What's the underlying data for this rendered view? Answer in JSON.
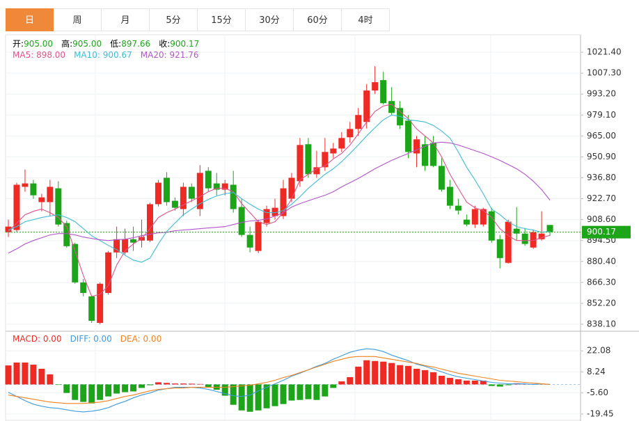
{
  "tabs": [
    "日",
    "周",
    "月",
    "5分",
    "15分",
    "30分",
    "60分",
    "4时"
  ],
  "active_tab": 0,
  "quote": [
    {
      "label": "开",
      "value": "905.00"
    },
    {
      "label": "高",
      "value": "905.00"
    },
    {
      "label": "低",
      "value": "897.66"
    },
    {
      "label": "收",
      "value": "900.17"
    }
  ],
  "chart_data": [
    {
      "type": "candlestick",
      "up_color": "#ee2a24",
      "down_color": "#1da51a",
      "ohlc": [
        [
          900.1,
          908.6,
          896.9,
          903.9
        ],
        [
          901.6,
          933.5,
          900.1,
          932.1
        ],
        [
          930.7,
          942.4,
          927.4,
          933.0
        ],
        [
          933.0,
          935.4,
          922.7,
          925.0
        ],
        [
          920.4,
          926.0,
          914.2,
          923.6
        ],
        [
          920.4,
          935.4,
          911.0,
          930.7
        ],
        [
          929.7,
          934.5,
          903.9,
          905.3
        ],
        [
          906.3,
          908.0,
          889.8,
          890.7
        ],
        [
          892.2,
          893.0,
          865.4,
          866.3
        ],
        [
          866.3,
          868.6,
          856.9,
          859.2
        ],
        [
          856.9,
          857.5,
          839.0,
          840.4
        ],
        [
          839.0,
          866.3,
          838.1,
          865.4
        ],
        [
          859.2,
          887.5,
          858.0,
          886.5
        ],
        [
          886.5,
          903.9,
          882.7,
          895.4
        ],
        [
          886.5,
          902.5,
          885.1,
          895.4
        ],
        [
          895.4,
          903.9,
          887.5,
          893.1
        ],
        [
          894.5,
          908.6,
          889.8,
          896.9
        ],
        [
          894.5,
          920.0,
          893.5,
          919.0
        ],
        [
          919.0,
          935.4,
          917.5,
          933.5
        ],
        [
          936.8,
          940.6,
          918.0,
          920.4
        ],
        [
          921.3,
          923.6,
          914.7,
          916.6
        ],
        [
          915.7,
          933.5,
          911.0,
          930.7
        ],
        [
          930.7,
          933.0,
          920.4,
          922.7
        ],
        [
          915.7,
          945.3,
          911.0,
          940.1
        ],
        [
          941.5,
          944.0,
          927.4,
          929.7
        ],
        [
          933.0,
          940.1,
          925.0,
          928.8
        ],
        [
          928.8,
          935.4,
          925.0,
          933.0
        ],
        [
          932.1,
          941.5,
          913.3,
          915.7
        ],
        [
          917.1,
          922.7,
          896.9,
          898.3
        ],
        [
          898.3,
          903.9,
          886.5,
          889.8
        ],
        [
          887.5,
          908.6,
          886.0,
          907.2
        ],
        [
          906.3,
          918.0,
          903.9,
          915.7
        ],
        [
          911.0,
          922.7,
          908.6,
          916.6
        ],
        [
          911.0,
          935.4,
          909.0,
          929.7
        ],
        [
          922.7,
          940.1,
          920.4,
          936.8
        ],
        [
          934.5,
          963.6,
          930.7,
          958.9
        ],
        [
          959.4,
          963.6,
          936.8,
          939.2
        ],
        [
          939.2,
          955.0,
          936.8,
          943.9
        ],
        [
          943.9,
          963.6,
          941.5,
          954.2
        ],
        [
          953.2,
          960.3,
          950.0,
          956.5
        ],
        [
          956.5,
          967.5,
          954.2,
          963.6
        ],
        [
          964.1,
          974.4,
          960.3,
          969.7
        ],
        [
          969.7,
          983.8,
          965.0,
          979.1
        ],
        [
          974.4,
          1000.0,
          970.0,
          995.6
        ],
        [
          995.6,
          1012.0,
          993.2,
          1001.2
        ],
        [
          1002.6,
          1008.2,
          986.2,
          987.1
        ],
        [
          988.5,
          997.9,
          979.1,
          980.5
        ],
        [
          983.8,
          988.5,
          969.7,
          972.1
        ],
        [
          975.3,
          979.1,
          950.0,
          954.2
        ],
        [
          953.2,
          965.0,
          943.9,
          962.7
        ],
        [
          959.4,
          965.0,
          941.5,
          944.8
        ],
        [
          960.3,
          965.0,
          943.9,
          944.8
        ],
        [
          944.8,
          950.0,
          927.4,
          928.8
        ],
        [
          930.7,
          935.4,
          915.7,
          918.0
        ],
        [
          918.0,
          922.7,
          912.0,
          914.7
        ],
        [
          908.6,
          912.0,
          904.0,
          905.3
        ],
        [
          905.3,
          918.0,
          903.0,
          915.7
        ],
        [
          905.3,
          916.6,
          903.9,
          915.7
        ],
        [
          914.2,
          916.6,
          893.1,
          894.5
        ],
        [
          895.4,
          898.3,
          875.7,
          882.7
        ],
        [
          879.5,
          908.6,
          879.0,
          907.2
        ],
        [
          902.5,
          917.1,
          894.5,
          899.2
        ],
        [
          899.2,
          903.0,
          891.0,
          892.2
        ],
        [
          889.8,
          902.0,
          888.9,
          900.1
        ],
        [
          895.4,
          914.2,
          894.5,
          899.2
        ],
        [
          905.0,
          905.0,
          897.66,
          900.17
        ]
      ],
      "series": [
        {
          "name": "MA5",
          "value_label": "898.00",
          "color": "#e0528a",
          "values": [
            900.6,
            906.3,
            911.9,
            914.2,
            915.7,
            913.3,
            910.0,
            903.9,
            887.5,
            871.0,
            856.9,
            858.3,
            864.0,
            878.0,
            887.5,
            892.2,
            895.9,
            902.5,
            910.0,
            913.3,
            915.7,
            918.5,
            921.3,
            924.1,
            927.4,
            929.7,
            929.7,
            927.4,
            919.4,
            913.3,
            907.2,
            905.3,
            907.2,
            913.3,
            922.7,
            935.4,
            939.2,
            942.9,
            944.8,
            949.5,
            953.2,
            958.9,
            966.4,
            974.4,
            981.5,
            985.2,
            986.2,
            981.5,
            976.7,
            969.7,
            965.0,
            960.3,
            950.9,
            939.2,
            929.7,
            920.4,
            916.6,
            914.7,
            910.0,
            902.5,
            897.8,
            894.5,
            894.5,
            894.5,
            896.4,
            898.0
          ]
        },
        {
          "name": "MA10",
          "value_label": "900.67",
          "color": "#3cbcd4",
          "values": [
            901.6,
            903.9,
            907.2,
            908.6,
            910.0,
            911.0,
            911.9,
            910.0,
            907.2,
            902.5,
            897.8,
            894.5,
            891.2,
            888.4,
            884.6,
            881.3,
            879.9,
            882.7,
            892.2,
            900.6,
            906.3,
            911.9,
            915.7,
            919.4,
            922.2,
            924.6,
            926.0,
            926.9,
            922.7,
            919.0,
            915.7,
            913.3,
            913.3,
            914.7,
            919.0,
            924.1,
            929.7,
            934.5,
            939.2,
            942.9,
            947.6,
            953.2,
            958.9,
            965.0,
            970.6,
            975.8,
            979.1,
            978.2,
            975.8,
            975.3,
            974.4,
            972.1,
            968.3,
            963.6,
            954.2,
            943.9,
            935.4,
            926.0,
            915.7,
            911.9,
            907.2,
            903.9,
            902.5,
            901.6,
            900.1,
            900.67
          ]
        },
        {
          "name": "MA20",
          "value_label": "921.76",
          "color": "#b055c8",
          "values": [
            886.0,
            888.9,
            892.2,
            894.5,
            896.4,
            898.3,
            899.2,
            899.2,
            898.3,
            896.9,
            895.9,
            895.0,
            894.5,
            895.0,
            895.4,
            896.4,
            897.8,
            898.7,
            899.7,
            900.1,
            901.1,
            901.6,
            902.0,
            902.5,
            903.0,
            903.4,
            903.9,
            905.3,
            906.7,
            907.7,
            908.1,
            909.1,
            911.0,
            913.3,
            917.1,
            919.4,
            921.3,
            923.2,
            925.0,
            927.4,
            930.7,
            933.5,
            936.3,
            939.6,
            942.9,
            945.7,
            948.5,
            950.9,
            953.2,
            955.6,
            958.0,
            960.3,
            960.8,
            960.3,
            958.9,
            957.0,
            955.1,
            953.2,
            950.9,
            948.5,
            945.7,
            942.9,
            939.2,
            934.5,
            928.8,
            921.76
          ]
        }
      ],
      "last_price": 900.17,
      "ylim": [
        833.4,
        1033.15
      ],
      "yticks": [
        {
          "value": 1021.4,
          "label": "1021.40"
        },
        {
          "value": 1007.3,
          "label": "1007.30"
        },
        {
          "value": 993.2,
          "label": "993.20"
        },
        {
          "value": 979.1,
          "label": "979.10"
        },
        {
          "value": 965.0,
          "label": "965.00"
        },
        {
          "value": 950.9,
          "label": "950.90"
        },
        {
          "value": 936.8,
          "label": "936.80"
        },
        {
          "value": 922.7,
          "label": "922.70"
        },
        {
          "value": 908.6,
          "label": "908.60"
        },
        {
          "value": 894.5,
          "label": "894.50"
        },
        {
          "value": 880.4,
          "label": "880.40"
        },
        {
          "value": 866.3,
          "label": "866.30"
        },
        {
          "value": 852.2,
          "label": "852.20"
        },
        {
          "value": 838.1,
          "label": "838.10"
        }
      ],
      "grid": true
    },
    {
      "type": "macd",
      "histogram": {
        "name": "MACD",
        "value_label": "0.00",
        "up_color": "#ee2a24",
        "down_color": "#1da51a",
        "values": [
          12.5,
          14.4,
          14.4,
          13.0,
          10.3,
          6.6,
          -0.3,
          -5.6,
          -10.2,
          -11.5,
          -12.5,
          -10.2,
          -7.9,
          -6.0,
          -5.1,
          -4.6,
          -2.3,
          -0.5,
          1.4,
          1.0,
          0.6,
          0.6,
          0.5,
          0.3,
          -1.6,
          -3.5,
          -7.4,
          -13.4,
          -17.1,
          -18.0,
          -17.1,
          -15.7,
          -14.3,
          -12.9,
          -10.6,
          -10.2,
          -9.7,
          -10.2,
          -7.9,
          -2.3,
          2.0,
          4.8,
          11.7,
          15.9,
          15.4,
          15.0,
          14.1,
          12.7,
          12.2,
          10.3,
          9.4,
          8.0,
          5.7,
          4.3,
          3.4,
          2.5,
          2.5,
          2.5,
          -1.0,
          -1.4,
          -0.5,
          0.8,
          0.3,
          0.3,
          0.2,
          0.0
        ]
      },
      "series": [
        {
          "name": "DIFF",
          "value_label": "0.00",
          "color": "#3d9be0",
          "values": [
            -5.14,
            -7.9,
            -10.67,
            -12.98,
            -14.36,
            -15.29,
            -15.75,
            -16.67,
            -17.59,
            -18.05,
            -17.59,
            -16.67,
            -15.29,
            -12.98,
            -11.13,
            -8.83,
            -6.98,
            -5.6,
            -3.74,
            -2.82,
            -1.9,
            -1.9,
            -1.9,
            -2.36,
            -3.28,
            -4.66,
            -6.06,
            -7.44,
            -7.9,
            -6.98,
            -4.2,
            -1.9,
            0.41,
            2.72,
            5.49,
            7.33,
            9.64,
            11.94,
            13.79,
            16.55,
            18.85,
            21.16,
            22.54,
            23.46,
            23.0,
            21.62,
            19.31,
            17.47,
            15.63,
            13.33,
            11.94,
            10.1,
            8.26,
            6.41,
            5.03,
            4.1,
            3.18,
            2.26,
            1.33,
            0.87,
            0.41,
            0.41,
            0.41,
            -0.05,
            0.41,
            0.0
          ]
        },
        {
          "name": "DEA",
          "value_label": "0.00",
          "color": "#f0821e",
          "values": [
            -6.98,
            -7.9,
            -8.83,
            -9.75,
            -10.67,
            -11.6,
            -12.06,
            -12.52,
            -12.52,
            -12.52,
            -12.06,
            -11.6,
            -10.67,
            -9.29,
            -7.9,
            -6.98,
            -5.6,
            -4.2,
            -3.28,
            -2.82,
            -2.36,
            -2.36,
            -1.9,
            -1.9,
            -1.9,
            -1.9,
            -1.9,
            -1.44,
            -0.97,
            -0.51,
            0.41,
            1.33,
            2.72,
            4.56,
            5.95,
            7.79,
            9.64,
            11.48,
            13.33,
            15.17,
            16.55,
            17.93,
            18.39,
            18.39,
            18.39,
            17.47,
            16.55,
            15.63,
            14.71,
            13.79,
            12.4,
            11.48,
            10.1,
            8.7,
            7.33,
            6.41,
            5.49,
            4.56,
            3.64,
            2.72,
            2.26,
            1.8,
            1.33,
            0.87,
            0.41,
            0.0
          ]
        }
      ],
      "ylim": [
        -24.06,
        35.0
      ],
      "yticks": [
        22.08,
        8.24,
        {
          "value": -5.6,
          "label": "-5.60"
        },
        -19.45
      ],
      "grid": true
    }
  ]
}
